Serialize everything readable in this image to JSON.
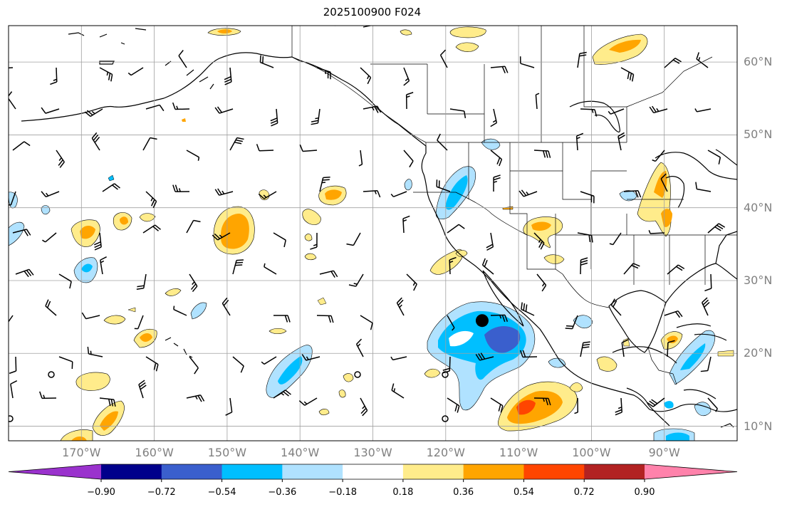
{
  "title": "2025100900 F024",
  "lat_labels": [
    "60°N",
    "50°N",
    "40°N",
    "30°N",
    "20°N",
    "10°N"
  ],
  "lon_labels": [
    "170°W",
    "160°W",
    "150°W",
    "140°W",
    "130°W",
    "120°W",
    "110°W",
    "100°W",
    "90°W"
  ],
  "colorbar": {
    "labels": [
      "−0.90",
      "−0.72",
      "−0.54",
      "−0.36",
      "−0.18",
      "0.18",
      "0.36",
      "0.54",
      "0.72",
      "0.90"
    ],
    "colors": [
      "#9a32cd",
      "#00008b",
      "#3a5fcd",
      "#00bfff",
      "#b0e2ff",
      "#ffffff",
      "#ffec8b",
      "#ffa500",
      "#ff4500",
      "#b22222",
      "#ff82ab"
    ]
  },
  "map": {
    "lon_range": [
      -180,
      -80
    ],
    "lat_range": [
      8,
      65
    ],
    "field_colors": {
      "neg_light": "#b0e2ff",
      "neg_mid": "#00bfff",
      "neg_dark": "#3a5fcd",
      "pos_light": "#ffec8b",
      "pos_mid": "#ffa500",
      "pos_dark": "#ff4500"
    },
    "marker": {
      "lon": -115,
      "lat": 24.5
    }
  }
}
